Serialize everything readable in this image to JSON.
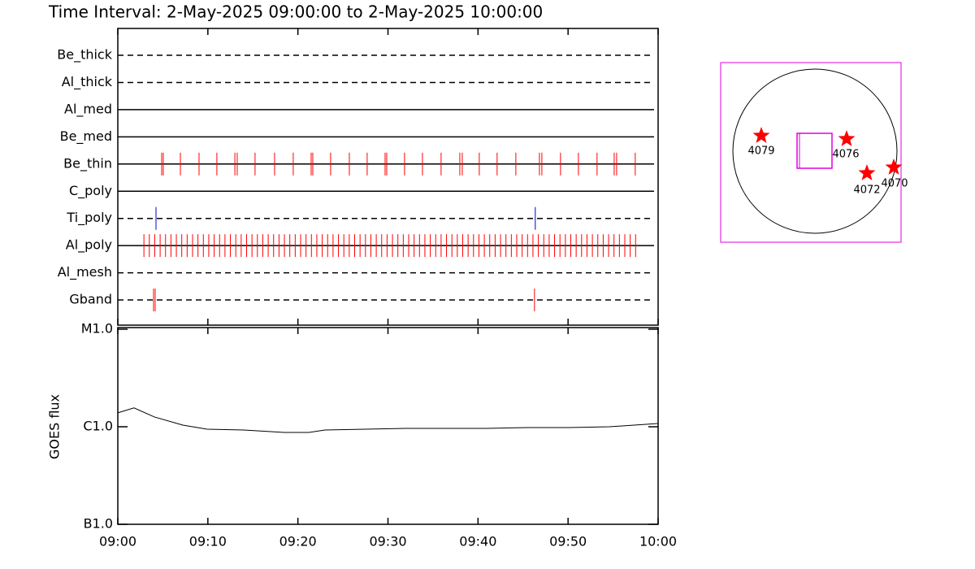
{
  "chart_data": {
    "type": "event-timeline",
    "title": "Time Interval:  2-May-2025 09:00:00 to  2-May-2025 10:00:00",
    "xlim": [
      0,
      60
    ],
    "xticks": [
      {
        "value": 0,
        "label": "09:00"
      },
      {
        "value": 10,
        "label": "09:10"
      },
      {
        "value": 20,
        "label": "09:20"
      },
      {
        "value": 30,
        "label": "09:30"
      },
      {
        "value": 40,
        "label": "09:40"
      },
      {
        "value": 50,
        "label": "09:50"
      },
      {
        "value": 60,
        "label": "10:00"
      }
    ],
    "detectors": [
      {
        "name": "Be_thick",
        "style": "dashed",
        "color": "#ff0000",
        "events": []
      },
      {
        "name": "Al_thick",
        "style": "dashed",
        "color": "#ff0000",
        "events": []
      },
      {
        "name": "Al_med",
        "style": "solid",
        "color": "#ff0000",
        "events": []
      },
      {
        "name": "Be_med",
        "style": "solid",
        "color": "#ff0000",
        "events": []
      },
      {
        "name": "Be_thin",
        "style": "solid",
        "color": "#ff0000",
        "events": [
          4.87,
          5.05,
          6.95,
          9.02,
          11.0,
          13.0,
          13.26,
          15.24,
          17.41,
          19.48,
          21.47,
          21.65,
          23.63,
          25.71,
          27.69,
          29.68,
          29.86,
          31.84,
          33.83,
          35.9,
          37.98,
          38.25,
          40.14,
          42.12,
          44.2,
          46.82,
          47.09,
          49.16,
          51.15,
          53.22,
          55.12,
          55.39,
          57.46
        ]
      },
      {
        "name": "C_poly",
        "style": "solid",
        "color": "#ff0000",
        "events": []
      },
      {
        "name": "Ti_poly",
        "style": "dashed",
        "color": "#0000cc",
        "events": [
          4.24,
          46.36
        ]
      },
      {
        "name": "Al_poly",
        "style": "solid",
        "color": "#ff0000",
        "events": [
          2.9,
          3.5,
          4.1,
          4.7,
          5.3,
          5.9,
          6.5,
          7.1,
          7.7,
          8.3,
          8.9,
          9.5,
          10.1,
          10.7,
          11.3,
          11.9,
          12.5,
          13.1,
          13.7,
          14.3,
          14.9,
          15.5,
          16.1,
          16.7,
          17.3,
          17.9,
          18.5,
          19.1,
          19.7,
          20.3,
          20.9,
          21.5,
          22.1,
          22.7,
          23.3,
          23.9,
          24.5,
          25.1,
          25.7,
          26.3,
          26.9,
          27.5,
          28.1,
          28.7,
          29.3,
          29.9,
          30.5,
          31.1,
          31.7,
          32.3,
          32.9,
          33.5,
          34.1,
          34.7,
          35.3,
          35.9,
          36.5,
          37.1,
          37.7,
          38.3,
          38.9,
          39.5,
          40.1,
          40.7,
          41.3,
          41.9,
          42.5,
          43.1,
          43.7,
          44.3,
          44.9,
          45.5,
          46.1,
          46.7,
          47.3,
          47.9,
          48.5,
          49.1,
          49.7,
          50.3,
          50.9,
          51.5,
          52.1,
          52.7,
          53.3,
          53.9,
          54.5,
          55.1,
          55.7,
          56.3,
          56.9,
          57.5
        ]
      },
      {
        "name": "Al_mesh",
        "style": "dashed",
        "color": "#ff0000",
        "events": []
      },
      {
        "name": "Gband",
        "style": "dashed",
        "color": "#ff0000",
        "events": [
          3.97,
          4.15,
          46.27
        ]
      }
    ],
    "goes": {
      "type": "line",
      "ylabel": "GOES flux",
      "log": true,
      "color": "#000000",
      "ylim": [
        1e-07,
        1e-05
      ],
      "yticks": [
        {
          "value": 1e-07,
          "label": "B1.0"
        },
        {
          "value": 1e-06,
          "label": "C1.0"
        },
        {
          "value": 1e-05,
          "label": "M1.0"
        }
      ],
      "x": [
        0,
        1.8,
        4.06,
        7.22,
        9.92,
        13.98,
        18.49,
        21.2,
        23.0,
        27.5,
        32.0,
        36.5,
        41.0,
        45.6,
        50.1,
        54.6,
        60
      ],
      "values": [
        1.39e-06,
        1.56e-06,
        1.26e-06,
        1.04e-06,
        9.44e-07,
        9.26e-07,
        8.74e-07,
        8.74e-07,
        9.26e-07,
        9.44e-07,
        9.62e-07,
        9.62e-07,
        9.62e-07,
        9.81e-07,
        9.81e-07,
        1e-06,
        1.08e-06
      ]
    },
    "regions": [
      "4079",
      "4076",
      "4072",
      "4070"
    ]
  }
}
